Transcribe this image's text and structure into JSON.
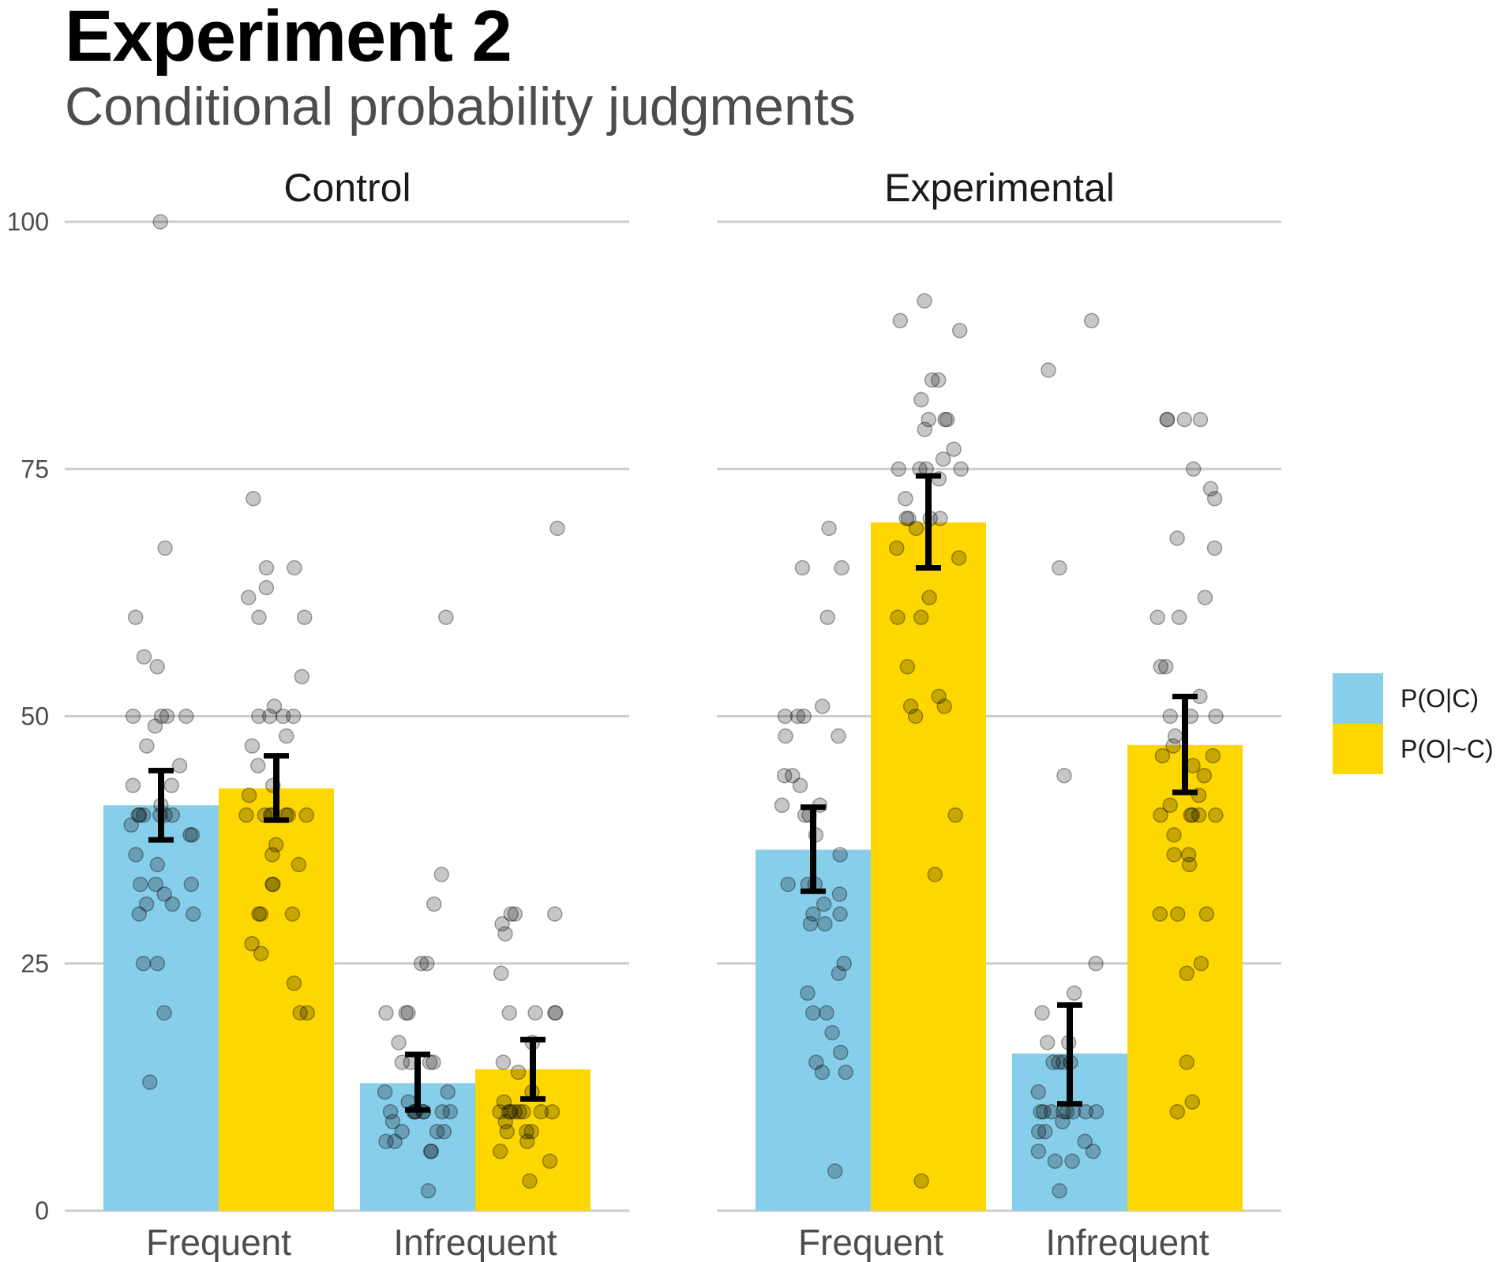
{
  "title": "Experiment 2",
  "subtitle": "Conditional probability judgments",
  "colors": {
    "poc": "#87CEEB",
    "ponc": "#FFD700",
    "grid": "#cccccc",
    "point": "#000000",
    "error": "#000000"
  },
  "chart_data": {
    "type": "bar",
    "ylim": [
      0,
      100
    ],
    "yticks": [
      0,
      25,
      50,
      75,
      100
    ],
    "categories": [
      "Frequent",
      "Infrequent"
    ],
    "legend": [
      {
        "key": "poc",
        "label": "P(O|C)"
      },
      {
        "key": "ponc",
        "label": "P(O|~C)"
      }
    ],
    "panels": [
      {
        "name": "Control",
        "groups": [
          {
            "category": "Frequent",
            "bars": [
              {
                "key": "poc",
                "mean": 41,
                "ci": [
                  37.5,
                  44.5
                ],
                "points": [
                  100,
                  67,
                  60,
                  56,
                  55,
                  50,
                  50,
                  50,
                  50,
                  49,
                  47,
                  45,
                  43,
                  43,
                  41,
                  40,
                  40,
                  40,
                  40,
                  40,
                  40,
                  39,
                  38,
                  38,
                  36,
                  35,
                  33,
                  33,
                  33,
                  32,
                  31,
                  31,
                  30,
                  30,
                  25,
                  25,
                  20,
                  13
                ]
              },
              {
                "key": "ponc",
                "mean": 42.7,
                "ci": [
                  39.5,
                  46
                ],
                "points": [
                  72,
                  65,
                  65,
                  63,
                  62,
                  60,
                  60,
                  54,
                  51,
                  50,
                  50,
                  50,
                  50,
                  48,
                  47,
                  45,
                  43,
                  42,
                  40,
                  40,
                  40,
                  40,
                  40,
                  40,
                  40,
                  37,
                  36,
                  35,
                  33,
                  33,
                  30,
                  30,
                  30,
                  27,
                  26,
                  23,
                  20,
                  20
                ]
              }
            ]
          },
          {
            "category": "Infrequent",
            "bars": [
              {
                "key": "poc",
                "mean": 12.9,
                "ci": [
                  10.2,
                  15.8
                ],
                "points": [
                  60,
                  34,
                  31,
                  25,
                  25,
                  20,
                  20,
                  20,
                  17,
                  15,
                  15,
                  15,
                  15,
                  12,
                  12,
                  11,
                  10,
                  10,
                  10,
                  10,
                  10,
                  10,
                  10,
                  10,
                  9,
                  8,
                  8,
                  8,
                  7,
                  7,
                  6,
                  6,
                  2
                ]
              },
              {
                "key": "ponc",
                "mean": 14.3,
                "ci": [
                  11.3,
                  17.3
                ],
                "points": [
                  69,
                  30,
                  30,
                  30,
                  29,
                  28,
                  24,
                  20,
                  20,
                  20,
                  20,
                  17,
                  15,
                  14,
                  12,
                  11,
                  10,
                  10,
                  10,
                  10,
                  10,
                  10,
                  10,
                  10,
                  9,
                  8,
                  8,
                  8,
                  7,
                  6,
                  5,
                  3
                ]
              }
            ]
          }
        ]
      },
      {
        "name": "Experimental",
        "groups": [
          {
            "category": "Frequent",
            "bars": [
              {
                "key": "poc",
                "mean": 36.5,
                "ci": [
                  32.3,
                  40.8
                ],
                "points": [
                  69,
                  65,
                  65,
                  60,
                  51,
                  50,
                  50,
                  50,
                  48,
                  48,
                  44,
                  44,
                  43,
                  41,
                  41,
                  40,
                  40,
                  38,
                  36,
                  33,
                  33,
                  33,
                  32,
                  31,
                  30,
                  30,
                  29,
                  29,
                  25,
                  24,
                  22,
                  20,
                  20,
                  18,
                  16,
                  15,
                  14,
                  14,
                  4
                ]
              },
              {
                "key": "ponc",
                "mean": 69.6,
                "ci": [
                  65,
                  74.3
                ],
                "points": [
                  92,
                  90,
                  89,
                  84,
                  84,
                  82,
                  80,
                  80,
                  80,
                  79,
                  77,
                  76,
                  75,
                  75,
                  75,
                  75,
                  74,
                  72,
                  70,
                  70,
                  70,
                  70,
                  69,
                  67,
                  66,
                  62,
                  60,
                  60,
                  55,
                  52,
                  51,
                  51,
                  50,
                  40,
                  34,
                  3
                ]
              }
            ]
          },
          {
            "category": "Infrequent",
            "bars": [
              {
                "key": "poc",
                "mean": 15.9,
                "ci": [
                  10.8,
                  20.8
                ],
                "points": [
                  90,
                  85,
                  65,
                  44,
                  25,
                  22,
                  20,
                  17,
                  17,
                  15,
                  15,
                  15,
                  15,
                  12,
                  10,
                  10,
                  10,
                  10,
                  10,
                  10,
                  10,
                  10,
                  9,
                  8,
                  8,
                  7,
                  6,
                  6,
                  5,
                  5,
                  2
                ]
              },
              {
                "key": "ponc",
                "mean": 47.1,
                "ci": [
                  42.3,
                  52
                ],
                "points": [
                  80,
                  80,
                  80,
                  80,
                  75,
                  73,
                  72,
                  68,
                  67,
                  62,
                  60,
                  60,
                  55,
                  55,
                  52,
                  50,
                  50,
                  50,
                  48,
                  47,
                  46,
                  46,
                  45,
                  44,
                  42,
                  41,
                  40,
                  40,
                  40,
                  40,
                  40,
                  38,
                  36,
                  36,
                  35,
                  30,
                  30,
                  30,
                  25,
                  24,
                  15,
                  11,
                  10
                ]
              }
            ]
          }
        ]
      }
    ]
  }
}
